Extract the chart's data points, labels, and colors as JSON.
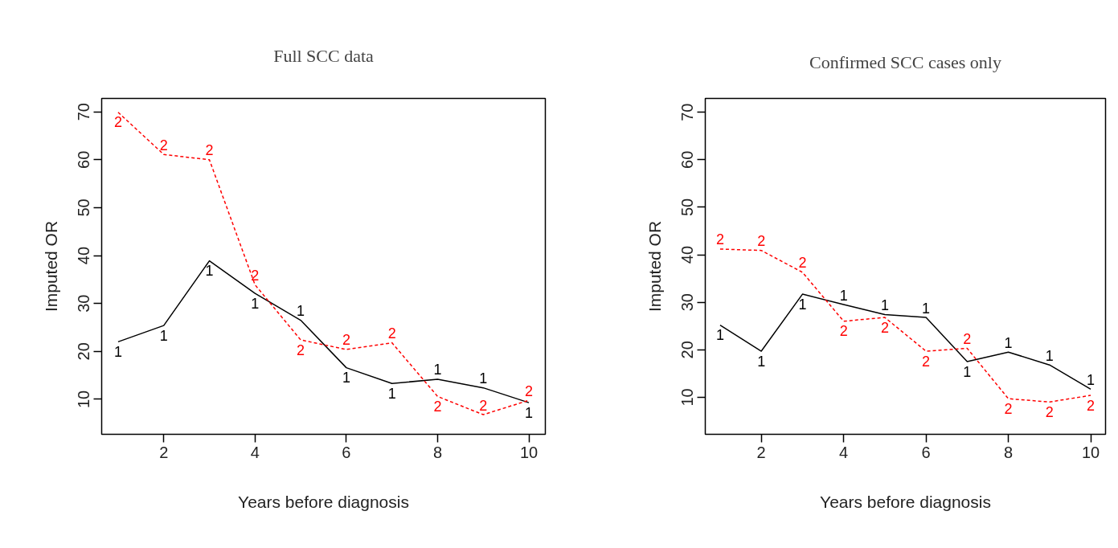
{
  "chart_data": [
    {
      "type": "line",
      "title": "Full SCC data",
      "xlabel": "Years before diagnosis",
      "ylabel": "Imputed OR",
      "x": [
        1,
        2,
        3,
        4,
        5,
        6,
        7,
        8,
        9,
        10
      ],
      "xlim": [
        0.64,
        10.36
      ],
      "ylim": [
        2.7,
        72.8
      ],
      "xticks": [
        2,
        4,
        6,
        8,
        10
      ],
      "yticks": [
        10,
        20,
        30,
        40,
        50,
        60,
        70
      ],
      "series": [
        {
          "name": "1",
          "color": "#000000",
          "line_style": "solid",
          "values": [
            22.0,
            25.4,
            38.9,
            32.1,
            26.5,
            16.6,
            13.3,
            14.2,
            12.4,
            9.3
          ]
        },
        {
          "name": "2",
          "color": "#ff0000",
          "line_style": "dashed",
          "values": [
            69.9,
            61.1,
            60.0,
            33.9,
            22.4,
            20.4,
            21.8,
            10.6,
            6.8,
            9.8
          ]
        }
      ]
    },
    {
      "type": "line",
      "title": "Confirmed SCC cases only",
      "xlabel": "Years before diagnosis",
      "ylabel": "Imputed OR",
      "x": [
        1,
        2,
        3,
        4,
        5,
        6,
        7,
        8,
        9,
        10
      ],
      "xlim": [
        0.64,
        10.36
      ],
      "ylim": [
        2.2,
        72.9
      ],
      "xticks": [
        2,
        4,
        6,
        8,
        10
      ],
      "yticks": [
        10,
        20,
        30,
        40,
        50,
        60,
        70
      ],
      "series": [
        {
          "name": "1",
          "color": "#000000",
          "line_style": "solid",
          "values": [
            25.2,
            19.7,
            31.7,
            29.5,
            27.4,
            26.8,
            17.5,
            19.5,
            16.8,
            11.7
          ]
        },
        {
          "name": "2",
          "color": "#ff0000",
          "line_style": "dashed",
          "values": [
            41.2,
            40.9,
            36.3,
            26.0,
            26.8,
            19.7,
            20.3,
            9.7,
            9.0,
            10.4
          ]
        }
      ]
    }
  ]
}
